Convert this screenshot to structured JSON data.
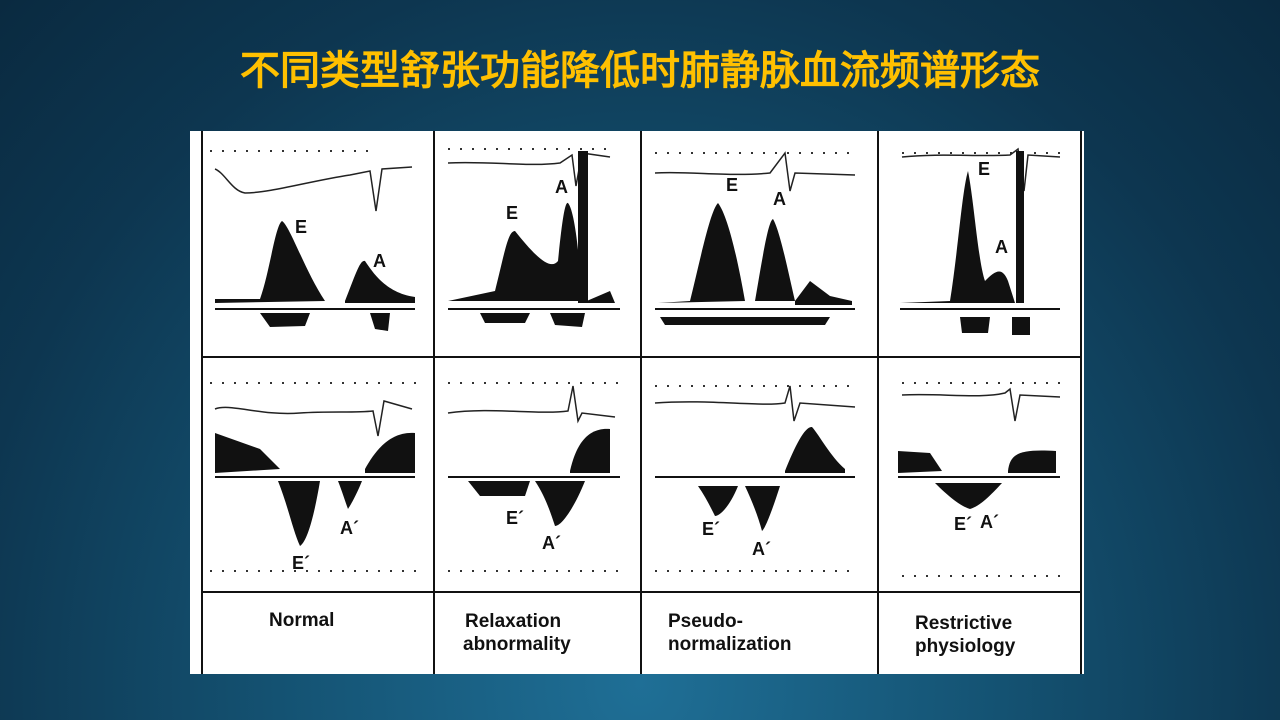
{
  "slide": {
    "title": "不同类型舒张功能降低时肺静脉血流频谱形态"
  },
  "figure": {
    "panels": [
      {
        "caption_lines": [
          "Normal"
        ],
        "top_labels": [
          "E",
          "A"
        ],
        "bottom_labels": [
          "E´",
          "A´"
        ]
      },
      {
        "caption_lines": [
          "Relaxation",
          "abnormality"
        ],
        "top_labels": [
          "E",
          "A"
        ],
        "bottom_labels": [
          "E´",
          "A´"
        ]
      },
      {
        "caption_lines": [
          "Pseudo-",
          "normalization"
        ],
        "top_labels": [
          "E",
          "A"
        ],
        "bottom_labels": [
          "E´",
          "A´"
        ]
      },
      {
        "caption_lines": [
          "Restrictive",
          "physiology"
        ],
        "top_labels": [
          "E",
          "A"
        ],
        "bottom_labels": [
          "E´",
          "A´"
        ]
      }
    ]
  }
}
